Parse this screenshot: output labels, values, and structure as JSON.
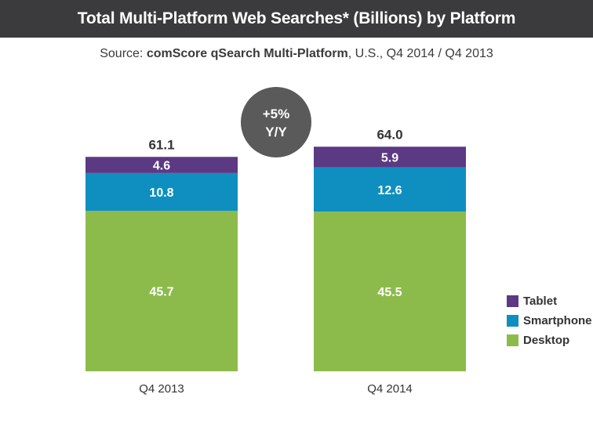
{
  "header": {
    "title": "Total Multi-Platform Web Searches* (Billions) by Platform",
    "subtitle_prefix": "Source: ",
    "subtitle_bold": "comScore qSearch Multi-Platform",
    "subtitle_suffix": ", U.S., Q4 2014 / Q4 2013"
  },
  "badge": {
    "line1": "+5%",
    "line2": "Y/Y",
    "color": "#5a5a5a"
  },
  "colors": {
    "Tablet": "#5c3983",
    "Smartphone": "#0e8fc0",
    "Desktop": "#8dbb4b",
    "title_bg": "#3b3b3d"
  },
  "chart_data": {
    "type": "bar",
    "stacked": true,
    "title": "Total Multi-Platform Web Searches* (Billions) by Platform",
    "categories": [
      "Q4 2013",
      "Q4 2014"
    ],
    "series": [
      {
        "name": "Desktop",
        "values": [
          45.7,
          45.5
        ]
      },
      {
        "name": "Smartphone",
        "values": [
          10.8,
          12.6
        ]
      },
      {
        "name": "Tablet",
        "values": [
          4.6,
          5.9
        ]
      }
    ],
    "totals": [
      "61.1",
      "64.0"
    ],
    "segment_labels": {
      "Desktop": [
        "45.7",
        "45.5"
      ],
      "Smartphone": [
        "10.8",
        "12.6"
      ],
      "Tablet": [
        "4.6",
        "5.9"
      ]
    },
    "legend": [
      "Tablet",
      "Smartphone",
      "Desktop"
    ],
    "legend_position": "right",
    "xlabel": "",
    "ylabel": "",
    "grid": false
  }
}
